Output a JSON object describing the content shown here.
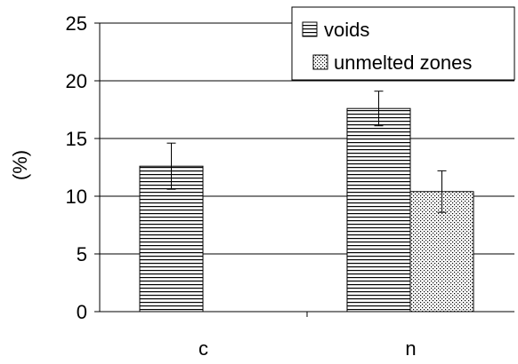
{
  "chart_data": {
    "type": "bar",
    "title": "",
    "xlabel": "",
    "ylabel": "(%)",
    "ylim": [
      0,
      25
    ],
    "yticks": [
      0,
      5,
      10,
      15,
      20,
      25
    ],
    "grid": true,
    "legend_position": "top-right",
    "categories": [
      "c",
      "n"
    ],
    "series": [
      {
        "name": "voids",
        "pattern": "horizontal-lines",
        "values": [
          12.6,
          17.6
        ],
        "error": [
          2.0,
          1.5
        ]
      },
      {
        "name": "unmelted zones",
        "pattern": "dots",
        "values": [
          null,
          10.4
        ],
        "error": [
          null,
          1.8
        ]
      }
    ]
  }
}
